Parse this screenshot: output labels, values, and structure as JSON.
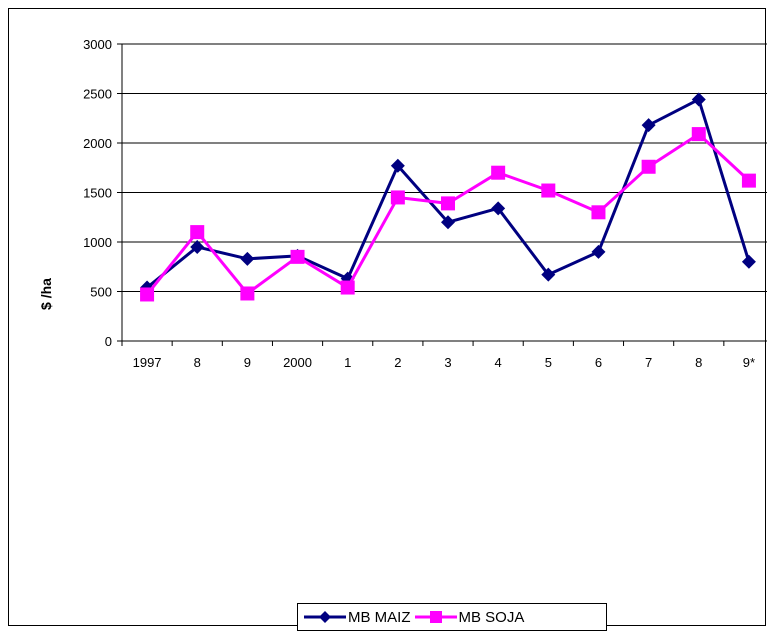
{
  "chart_data": {
    "type": "line",
    "title": "",
    "xlabel": "",
    "ylabel": "$ /ha",
    "categories": [
      "1997",
      "8",
      "9",
      "2000",
      "1",
      "2",
      "3",
      "4",
      "5",
      "6",
      "7",
      "8",
      "9*"
    ],
    "ylim": [
      0,
      3000
    ],
    "yticks": [
      0,
      500,
      1000,
      1500,
      2000,
      2500,
      3000
    ],
    "grid": true,
    "legend_position": "bottom",
    "series": [
      {
        "name": "MB MAIZ",
        "color": "#000080",
        "marker": "diamond",
        "values": [
          540,
          950,
          830,
          860,
          630,
          1770,
          1200,
          1340,
          670,
          900,
          2180,
          2440,
          800
        ]
      },
      {
        "name": "MB SOJA",
        "color": "#ff00ff",
        "marker": "square",
        "values": [
          470,
          1100,
          480,
          850,
          540,
          1450,
          1390,
          1700,
          1520,
          1300,
          1760,
          2090,
          1620
        ]
      }
    ]
  }
}
